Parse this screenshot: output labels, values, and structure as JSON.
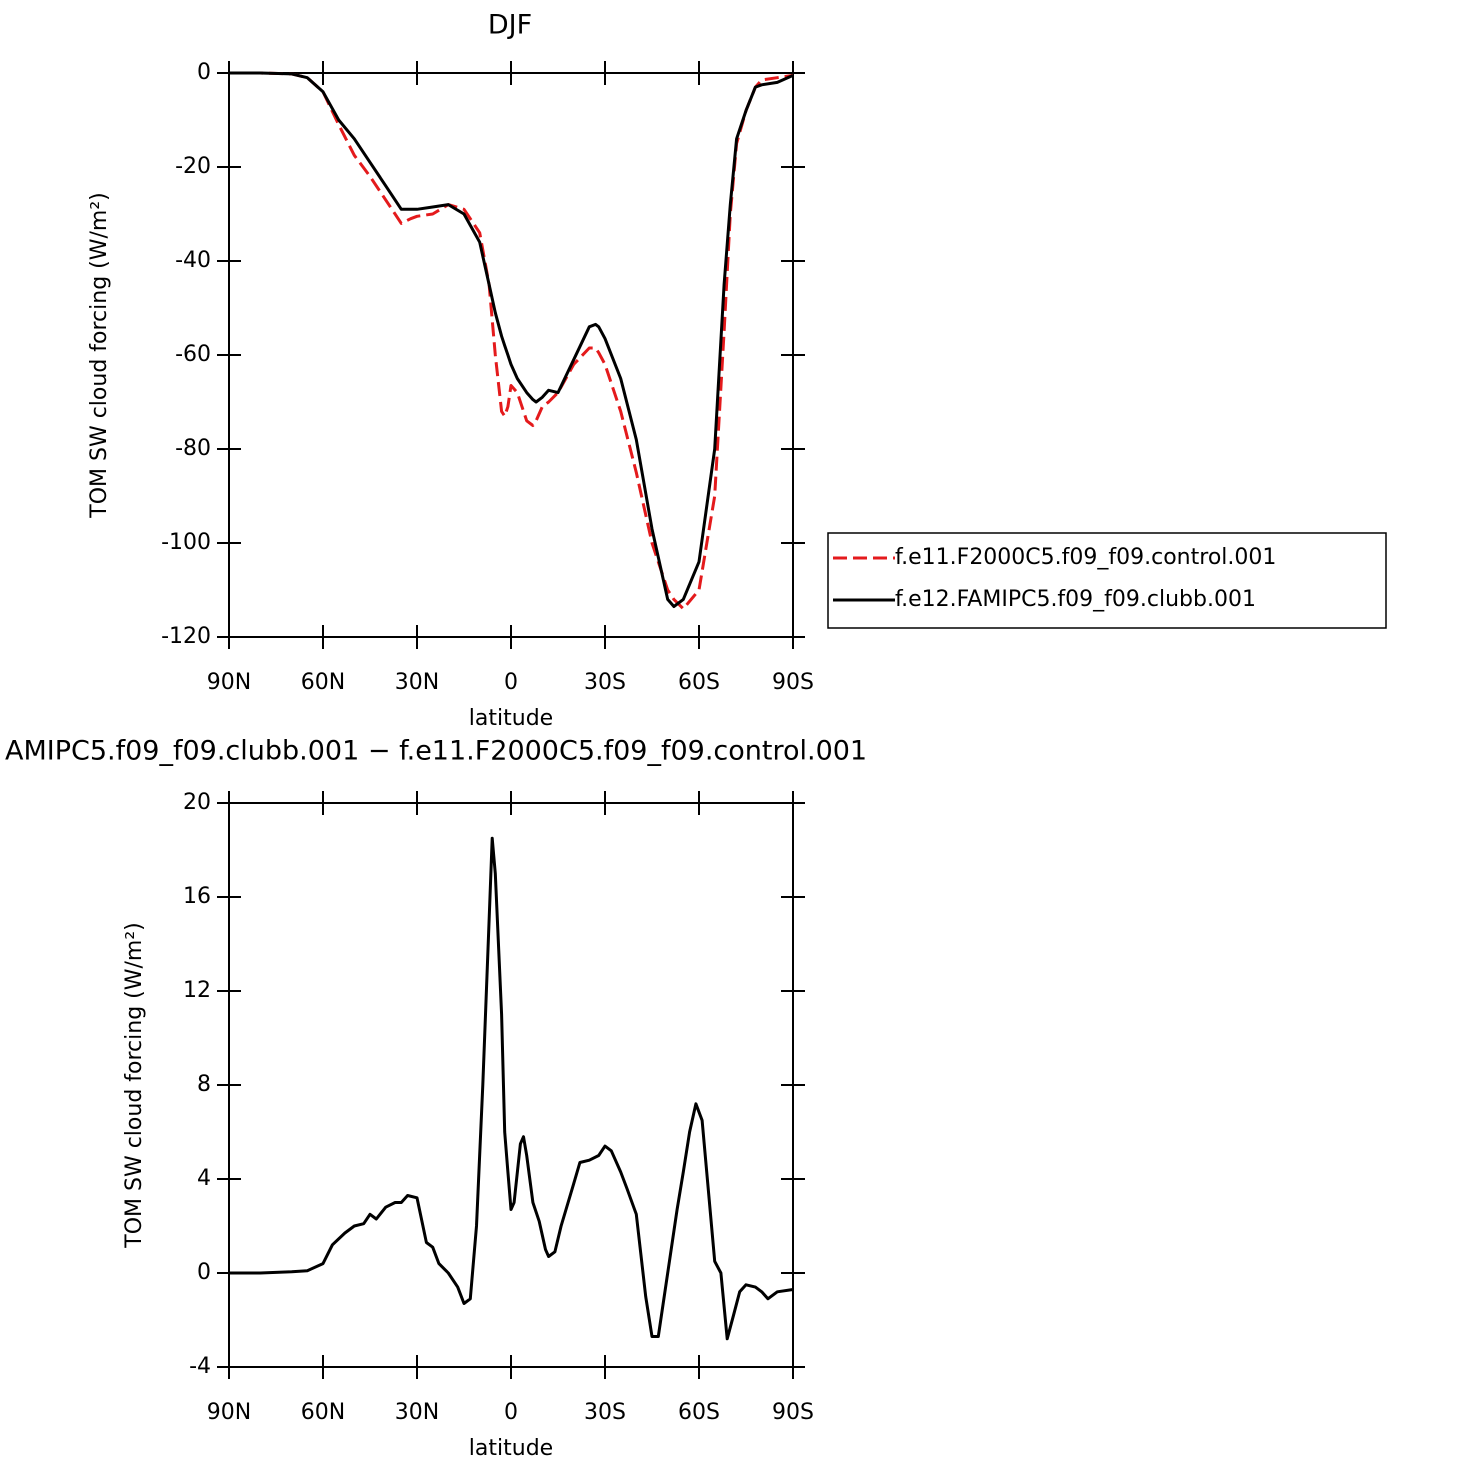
{
  "chart_data": [
    {
      "type": "line",
      "title": "DJF",
      "xlabel": "latitude",
      "ylabel": "TOM SW cloud forcing (W/m²)",
      "legend": "right",
      "x": [
        90,
        80,
        70,
        65,
        60,
        55,
        50,
        45,
        40,
        35,
        32,
        30,
        25,
        20,
        15,
        10,
        7,
        5,
        3,
        2,
        1,
        0,
        -2,
        -5,
        -7,
        -8,
        -10,
        -12,
        -15,
        -20,
        -25,
        -27,
        -28,
        -30,
        -35,
        -40,
        -45,
        -50,
        -52,
        -55,
        -60,
        -65,
        -68,
        -70,
        -72,
        -75,
        -78,
        -80,
        -85,
        -90
      ],
      "xlim": [
        90,
        -90
      ],
      "xticks": [
        {
          "value": 90,
          "label": "90N"
        },
        {
          "value": 60,
          "label": "60N"
        },
        {
          "value": 30,
          "label": "30N"
        },
        0,
        {
          "value": -30,
          "label": "30S"
        },
        {
          "value": -60,
          "label": "60S"
        },
        {
          "value": -90,
          "label": "90S"
        }
      ],
      "ylim": [
        -120,
        0
      ],
      "yticks": [
        0,
        -20,
        -40,
        -60,
        -80,
        -100,
        -120
      ],
      "series": [
        {
          "name": "f.e11.F2000C5.f09_f09.control.001",
          "color": "#e41a1c",
          "line_style": "dashed",
          "values": [
            0,
            0,
            -0.2,
            -1,
            -4,
            -11,
            -17.5,
            -22,
            -27,
            -32,
            -31,
            -30.5,
            -30,
            -28,
            -29,
            -34,
            -45,
            -60,
            -72,
            -73,
            -71,
            -66.5,
            -68,
            -74,
            -75,
            -74,
            -71,
            -70,
            -68,
            -62,
            -58.5,
            -58.5,
            -59.5,
            -62,
            -72,
            -85,
            -100,
            -110,
            -112,
            -114,
            -110,
            -90,
            -55,
            -30,
            -15,
            -8,
            -3,
            -1.5,
            -1,
            -0.5
          ]
        },
        {
          "name": "f.e12.FAMIPC5.f09_f09.clubb.001",
          "color": "#000000",
          "line_style": "solid",
          "values": [
            0,
            0,
            -0.2,
            -1,
            -4,
            -10,
            -14,
            -19,
            -24,
            -29,
            -29,
            -29,
            -28.5,
            -28,
            -30,
            -36,
            -45,
            -51,
            -56,
            -58,
            -60,
            -62,
            -65,
            -68,
            -69.5,
            -70,
            -69,
            -67.5,
            -68,
            -61,
            -54,
            -53.5,
            -54,
            -56.5,
            -65,
            -78,
            -97,
            -112,
            -113.5,
            -112,
            -104,
            -80,
            -45,
            -28,
            -14,
            -8,
            -3,
            -2.5,
            -2,
            -0.5
          ]
        }
      ]
    },
    {
      "type": "line",
      "title": "AMIPC5.f09_f09.clubb.001 − f.e11.F2000C5.f09_f09.control.001",
      "xlabel": "latitude",
      "ylabel": "TOM SW cloud forcing (W/m²)",
      "x": [
        90,
        80,
        70,
        65,
        60,
        57,
        53,
        50,
        47,
        45,
        43,
        40,
        37,
        35,
        33,
        30,
        27,
        25,
        23,
        20,
        17,
        15,
        13,
        11,
        9,
        7,
        6,
        5,
        3,
        2,
        1,
        0,
        -1,
        -3,
        -4,
        -5,
        -7,
        -9,
        -11,
        -12,
        -14,
        -16,
        -20,
        -22,
        -25,
        -28,
        -30,
        -32,
        -35,
        -37,
        -40,
        -43,
        -45,
        -47,
        -50,
        -53,
        -55,
        -57,
        -59,
        -61,
        -63,
        -65,
        -67,
        -69,
        -71,
        -73,
        -75,
        -78,
        -80,
        -82,
        -85,
        -90
      ],
      "xlim": [
        90,
        -90
      ],
      "xticks": [
        {
          "value": 90,
          "label": "90N"
        },
        {
          "value": 60,
          "label": "60N"
        },
        {
          "value": 30,
          "label": "30N"
        },
        0,
        {
          "value": -30,
          "label": "30S"
        },
        {
          "value": -60,
          "label": "60S"
        },
        {
          "value": -90,
          "label": "90S"
        }
      ],
      "ylim": [
        -4,
        20
      ],
      "yticks": [
        20,
        16,
        12,
        8,
        4,
        0,
        -4
      ],
      "series": [
        {
          "color": "#000000",
          "line_style": "solid",
          "values": [
            0,
            0,
            0.05,
            0.1,
            0.4,
            1.2,
            1.7,
            2.0,
            2.1,
            2.5,
            2.3,
            2.8,
            3.0,
            3.0,
            3.3,
            3.2,
            1.3,
            1.1,
            0.4,
            0,
            -0.6,
            -1.3,
            -1.1,
            2,
            8,
            15,
            18.5,
            17,
            11,
            6,
            4.3,
            2.7,
            3,
            5.5,
            5.8,
            5,
            3,
            2.2,
            1,
            0.7,
            0.9,
            2.0,
            3.8,
            4.7,
            4.8,
            5.0,
            5.4,
            5.2,
            4.3,
            3.6,
            2.5,
            -1,
            -2.7,
            -2.7,
            0,
            2.7,
            4.3,
            6,
            7.2,
            6.5,
            3.5,
            0.5,
            0,
            -2.8,
            -1.8,
            -0.8,
            -0.5,
            -0.6,
            -0.8,
            -1.1,
            -0.8,
            -0.7
          ]
        }
      ]
    }
  ]
}
